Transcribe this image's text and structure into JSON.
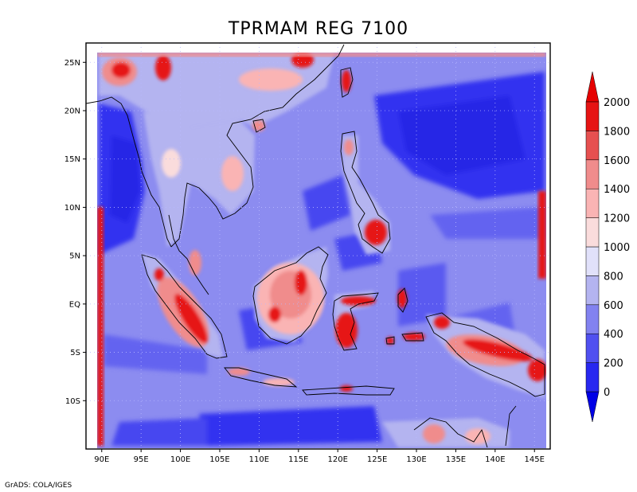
{
  "map": {
    "title": "TPRMAM REG 7100",
    "credit": "GrADS: COLA/IGES",
    "lon_range": [
      88,
      147
    ],
    "lat_range": [
      -15,
      27
    ],
    "lon_ticks": [
      {
        "value": 90,
        "label": "90E"
      },
      {
        "value": 95,
        "label": "95E"
      },
      {
        "value": 100,
        "label": "100E"
      },
      {
        "value": 105,
        "label": "105E"
      },
      {
        "value": 110,
        "label": "110E"
      },
      {
        "value": 115,
        "label": "115E"
      },
      {
        "value": 120,
        "label": "120E"
      },
      {
        "value": 125,
        "label": "125E"
      },
      {
        "value": 130,
        "label": "130E"
      },
      {
        "value": 135,
        "label": "135E"
      },
      {
        "value": 140,
        "label": "140E"
      },
      {
        "value": 145,
        "label": "145E"
      }
    ],
    "lat_ticks": [
      {
        "value": 25,
        "label": "25N"
      },
      {
        "value": 20,
        "label": "20N"
      },
      {
        "value": 15,
        "label": "15N"
      },
      {
        "value": 10,
        "label": "10N"
      },
      {
        "value": 5,
        "label": "5N"
      },
      {
        "value": 0,
        "label": "EQ"
      },
      {
        "value": -5,
        "label": "5S"
      },
      {
        "value": -10,
        "label": "10S"
      }
    ],
    "grid": true,
    "colors": {
      "ocean_deep": "#3232f0",
      "ocean_mid": "#6464f0",
      "background": "#8c8cf0",
      "land": "#b4b4f0",
      "rain_high": "#e61414"
    }
  },
  "colorbar": {
    "labels": [
      "0",
      "200",
      "400",
      "600",
      "800",
      "1000",
      "1200",
      "1400",
      "1600",
      "1800",
      "2000"
    ],
    "colors": [
      "#2828f0",
      "#5050f0",
      "#8282f0",
      "#b4b4f0",
      "#e1e1fa",
      "#fadcdc",
      "#fab4b4",
      "#f08c8c",
      "#e65050",
      "#e61414"
    ],
    "under_color": "#0000e6",
    "over_color": "#e60000"
  }
}
